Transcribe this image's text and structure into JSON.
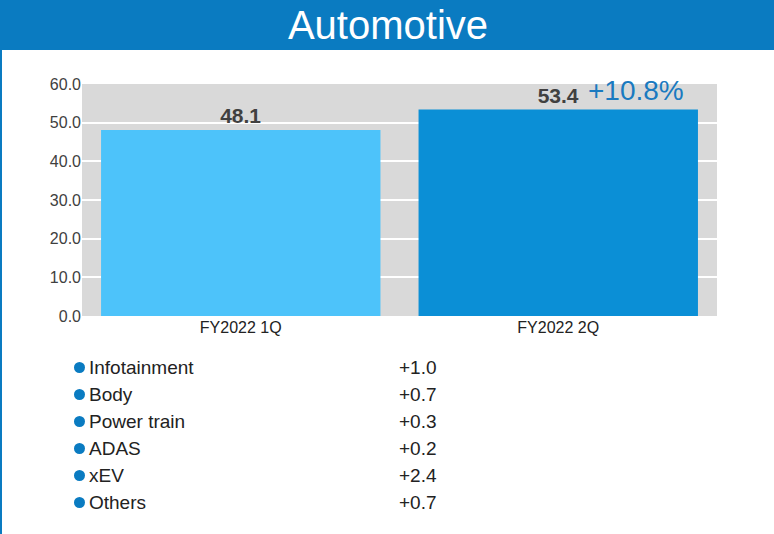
{
  "chart_data": {
    "type": "bar",
    "title": "Automotive",
    "categories": [
      "FY2022 1Q",
      "FY2022 2Q"
    ],
    "values": [
      48.1,
      53.4
    ],
    "colors": [
      "#4DC3FA",
      "#0B8FD6"
    ],
    "ylim": [
      0,
      60
    ],
    "yticks": [
      {
        "value": 0,
        "label": "0.0"
      },
      {
        "value": 10,
        "label": "10.0"
      },
      {
        "value": 20,
        "label": "20.0"
      },
      {
        "value": 30,
        "label": "30.0"
      },
      {
        "value": 40,
        "label": "40.0"
      },
      {
        "value": 50,
        "label": "50.0"
      },
      {
        "value": 60,
        "label": "60.0"
      }
    ],
    "grid": true,
    "data_labels": true,
    "annotations": [
      {
        "text": "+10.8%",
        "category": "FY2022 2Q"
      }
    ],
    "breakdown": [
      {
        "label": "Infotainment",
        "text": "+1.0"
      },
      {
        "label": "Body",
        "text": "+0.7"
      },
      {
        "label": "Power train",
        "text": "+0.3"
      },
      {
        "label": "ADAS",
        "text": "+0.2"
      },
      {
        "label": "xEV",
        "text": "+2.4"
      },
      {
        "label": "Others",
        "text": "+0.7"
      }
    ]
  }
}
